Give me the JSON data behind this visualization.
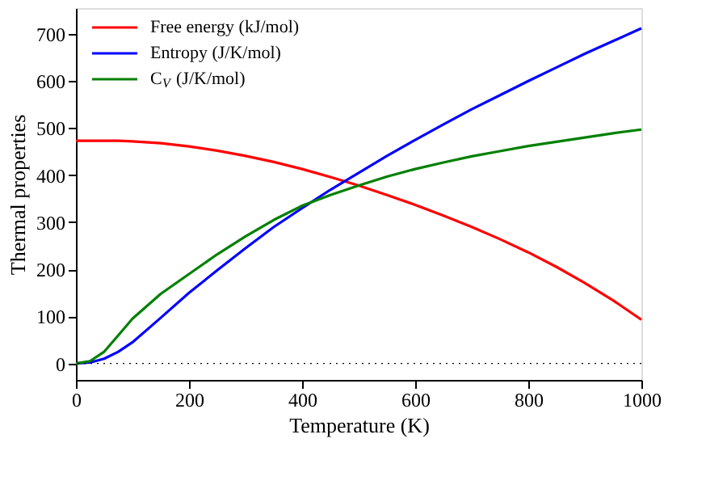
{
  "chart_data": {
    "type": "line",
    "xlabel": "Temperature (K)",
    "ylabel": "Thermal properties",
    "x": [
      0,
      25,
      50,
      75,
      100,
      150,
      200,
      250,
      300,
      350,
      400,
      450,
      500,
      550,
      600,
      650,
      700,
      750,
      800,
      850,
      900,
      950,
      1000
    ],
    "series": [
      {
        "name": "Free energy (kJ/mol)",
        "color": "#ff0000",
        "values": [
          473,
          473,
          473,
          473,
          472,
          468,
          461,
          452,
          441,
          428,
          413,
          396,
          378,
          358,
          337,
          314,
          290,
          264,
          236,
          205,
          171,
          134,
          93
        ]
      },
      {
        "name": "Entropy (J/K/mol)",
        "color": "#0000ff",
        "values": [
          0,
          2,
          10,
          25,
          45,
          97,
          150,
          198,
          245,
          290,
          330,
          369,
          405,
          441,
          475,
          508,
          540,
          570,
          600,
          629,
          658,
          685,
          712
        ]
      },
      {
        "name": "C$_{V}$ (J/K/mol)",
        "color": "#008000",
        "values": [
          0,
          5,
          25,
          60,
          95,
          148,
          190,
          232,
          270,
          305,
          335,
          358,
          378,
          397,
          413,
          427,
          440,
          451,
          462,
          471,
          480,
          489,
          497
        ]
      }
    ],
    "xlim": [
      0,
      1000
    ],
    "ylim": [
      -35,
      755
    ],
    "xticks": [
      0,
      200,
      400,
      600,
      800,
      1000
    ],
    "yticks": [
      0,
      100,
      200,
      300,
      400,
      500,
      600,
      700
    ],
    "ref_lines": [
      {
        "axis": "y",
        "value": 0,
        "color": "#000000",
        "line_style": "dotted"
      }
    ],
    "grid": false,
    "legend": "top left",
    "marker": "none",
    "line_style": "solid"
  }
}
